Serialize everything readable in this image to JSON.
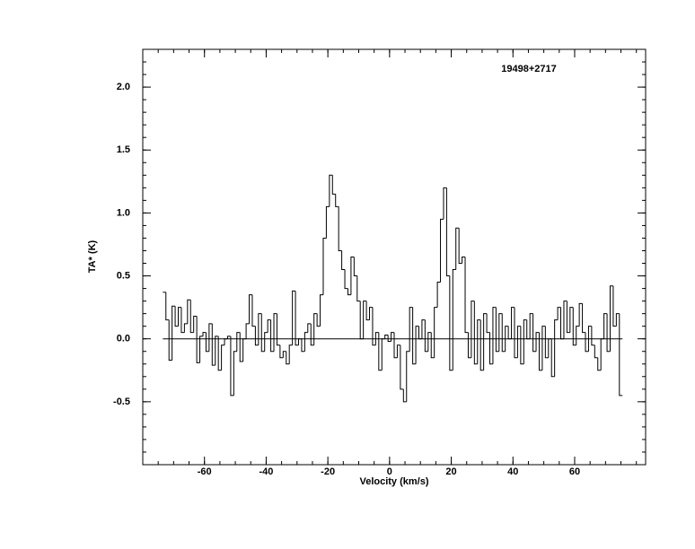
{
  "chart_data": {
    "type": "step",
    "title": "19498+2717",
    "x_label": "Velocity (km/s)",
    "y_label": "TA* (K)",
    "xlim": [
      -80,
      83
    ],
    "ylim": [
      -1.0,
      2.3
    ],
    "xticks": [
      -60,
      -40,
      -20,
      0,
      20,
      40,
      60
    ],
    "yticks": [
      -0.5,
      {
        "value": 0,
        "label": "0.0"
      },
      0.5,
      {
        "value": 1,
        "label": "1.0"
      },
      1.5,
      {
        "value": 2,
        "label": "2.0"
      }
    ],
    "x_minor_step": 5,
    "y_minor_step": 0.1,
    "baseline": 0,
    "color": "#000000",
    "x": [
      -73,
      -72,
      -71,
      -70,
      -69,
      -68,
      -67,
      -66,
      -65,
      -64,
      -63,
      -62,
      -61,
      -60,
      -59,
      -58,
      -57,
      -56,
      -55,
      -54,
      -53,
      -52,
      -51,
      -50,
      -49,
      -48,
      -47,
      -46,
      -45,
      -44,
      -43,
      -42,
      -41,
      -40,
      -39,
      -38,
      -37,
      -36,
      -35,
      -34,
      -33,
      -32,
      -31,
      -30,
      -29,
      -28,
      -27,
      -26,
      -25,
      -24,
      -23,
      -22,
      -21,
      -20,
      -19,
      -18,
      -17,
      -16,
      -15,
      -14,
      -13,
      -12,
      -11,
      -10,
      -9,
      -8,
      -7,
      -6,
      -5,
      -4,
      -3,
      -2,
      -1,
      0,
      1,
      2,
      3,
      4,
      5,
      6,
      7,
      8,
      9,
      10,
      11,
      12,
      13,
      14,
      15,
      16,
      17,
      18,
      19,
      20,
      21,
      22,
      23,
      24,
      25,
      26,
      27,
      28,
      29,
      30,
      31,
      32,
      33,
      34,
      35,
      36,
      37,
      38,
      39,
      40,
      41,
      42,
      43,
      44,
      45,
      46,
      47,
      48,
      49,
      50,
      51,
      52,
      53,
      54,
      55,
      56,
      57,
      58,
      59,
      60,
      61,
      62,
      63,
      64,
      65,
      66,
      67,
      68,
      69,
      70,
      71,
      72,
      73,
      74,
      75
    ],
    "values": [
      0.37,
      0.15,
      -0.17,
      0.26,
      0.1,
      0.25,
      0.05,
      0.12,
      0.31,
      0.05,
      0.18,
      -0.19,
      0.02,
      0.05,
      -0.1,
      0.12,
      -0.21,
      0.02,
      -0.25,
      -0.05,
      0.0,
      0.02,
      -0.45,
      -0.1,
      0.05,
      -0.18,
      0.0,
      0.12,
      0.35,
      0.1,
      -0.05,
      0.2,
      -0.1,
      0.05,
      0.15,
      -0.1,
      0.2,
      -0.05,
      -0.15,
      -0.1,
      -0.2,
      -0.05,
      0.38,
      -0.05,
      0.0,
      -0.1,
      0.05,
      0.12,
      -0.05,
      0.2,
      0.1,
      0.35,
      0.8,
      1.05,
      1.3,
      1.15,
      1.05,
      0.7,
      0.55,
      0.4,
      0.35,
      0.65,
      0.5,
      0.3,
      0.0,
      0.3,
      0.15,
      0.25,
      -0.05,
      0.05,
      -0.25,
      0.0,
      0.03,
      -0.02,
      0.05,
      -0.15,
      -0.05,
      -0.4,
      -0.5,
      -0.1,
      0.25,
      -0.2,
      0.1,
      0.0,
      0.15,
      -0.1,
      0.05,
      -0.15,
      0.25,
      0.45,
      0.95,
      1.2,
      0.5,
      -0.25,
      0.55,
      0.88,
      0.6,
      0.65,
      0.05,
      -0.15,
      0.3,
      -0.2,
      0.15,
      -0.25,
      0.2,
      0.05,
      -0.2,
      0.25,
      -0.1,
      0.2,
      -0.1,
      0.1,
      0.0,
      0.25,
      -0.15,
      0.1,
      -0.2,
      0.15,
      0.0,
      0.2,
      -0.1,
      0.05,
      -0.25,
      0.1,
      -0.15,
      0.0,
      -0.3,
      0.15,
      0.25,
      0.0,
      0.3,
      0.05,
      0.25,
      -0.05,
      0.1,
      0.28,
      0.05,
      -0.1,
      0.1,
      -0.05,
      -0.15,
      -0.25,
      0.0,
      0.2,
      -0.1,
      0.42,
      0.1,
      0.2,
      -0.45
    ]
  }
}
